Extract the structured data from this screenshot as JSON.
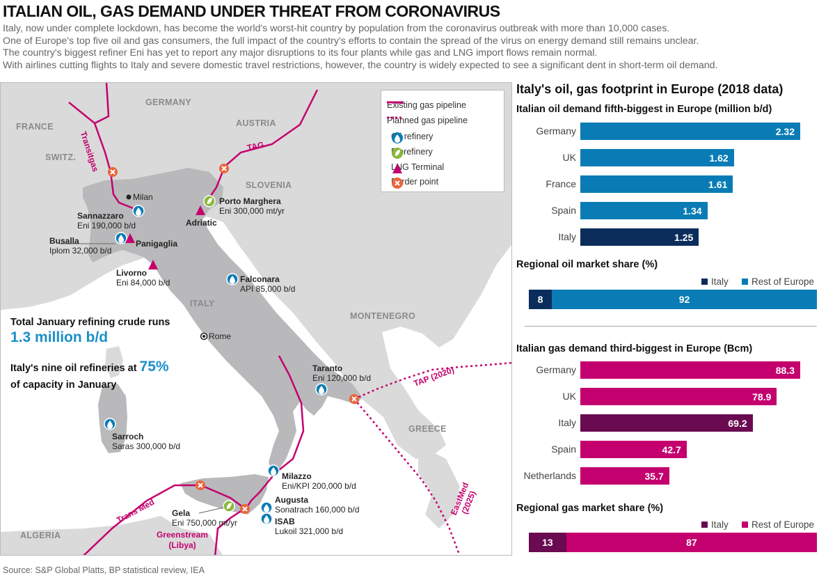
{
  "title": "ITALIAN OIL, GAS DEMAND UNDER THREAT FROM CORONAVIRUS",
  "intro": [
    "Italy, now under complete lockdown, has become the world's worst-hit country by population from the coronavirus outbreak with more than 10,000 cases.",
    "One of Europe's top five oil and gas consumers, the full impact of the country's efforts to contain the spread of the virus on energy demand still remains unclear.",
    "The country's biggest refiner Eni has yet to report any major disruptions to its four plants while gas and LNG import flows remain normal.",
    "With airlines cutting flights to Italy and severe domestic travel restrictions, however, the country is widely expected to see a significant dent in short-term oil demand."
  ],
  "source": "Source: S&P Global Platts, BP statistical review, IEA",
  "map": {
    "countries": [
      "GERMANY",
      "FRANCE",
      "AUSTRIA",
      "SWITZ.",
      "SLOVENIA",
      "ITALY",
      "MONTENEGRO",
      "GREECE",
      "ALGERIA"
    ],
    "legend": [
      "Existing gas pipeline",
      "Planned gas pipeline",
      "Oil refinery",
      "Biorefinery",
      "LNG Terminal",
      "Border point"
    ],
    "pipelines": [
      "Transitgas",
      "TAG",
      "TAP (2020)",
      "EastMed (2025)",
      "Trans Med",
      "Greenstream (Libya)"
    ],
    "cities": [
      "Milan",
      "Rome"
    ],
    "sites": [
      {
        "name": "Sannazzaro",
        "detail": "Eni 190,000 b/d"
      },
      {
        "name": "Busalla",
        "detail": "Iplom 32,000 b/d"
      },
      {
        "name": "Panigaglia",
        "detail": ""
      },
      {
        "name": "Livorno",
        "detail": "Eni 84,000 b/d"
      },
      {
        "name": "Porto Marghera",
        "detail": "Eni 300,000 mt/yr"
      },
      {
        "name": "Adriatic",
        "detail": ""
      },
      {
        "name": "Falconara",
        "detail": "API 85,000 b/d"
      },
      {
        "name": "Taranto",
        "detail": "Eni 120,000 b/d"
      },
      {
        "name": "Sarroch",
        "detail": "Saras 300,000 b/d"
      },
      {
        "name": "Milazzo",
        "detail": "Eni/KPI 200,000 b/d"
      },
      {
        "name": "Augusta",
        "detail": "Sonatrach 160,000 b/d"
      },
      {
        "name": "ISAB",
        "detail": "Lukoil 321,000 b/d"
      },
      {
        "name": "Gela",
        "detail": "Eni 750,000 mt/yr"
      }
    ],
    "stats": {
      "crude_runs_label": "Total January refining crude runs",
      "crude_runs_value": "1.3 million b/d",
      "capacity_label_a": "Italy's nine oil refineries at",
      "capacity_value": "75%",
      "capacity_label_b": "of capacity in January"
    }
  },
  "colors": {
    "oil": "#0a7cb5",
    "oil_italy": "#0b2d5b",
    "gas": "#c4006e",
    "gas_italy": "#6a0a50",
    "land": "#d8d8d8",
    "sea": "#ffffff",
    "italy": "#b9b9bb"
  },
  "chart_data": [
    {
      "type": "bar",
      "title": "Italy's oil, gas footprint in Europe (2018 data)",
      "subtitle": "Italian oil demand fifth-biggest in Europe (million b/d)",
      "categories": [
        "Germany",
        "UK",
        "France",
        "Spain",
        "Italy"
      ],
      "values": [
        2.32,
        1.62,
        1.61,
        1.34,
        1.25
      ],
      "labels": [
        "2.32",
        "1.62",
        "1.61",
        "1.34",
        "1.25"
      ],
      "highlight": "Italy",
      "xlim": [
        0,
        2.32
      ]
    },
    {
      "type": "bar",
      "title": "Regional oil market share (%)",
      "stacked": true,
      "series": [
        {
          "name": "Italy",
          "values": [
            8
          ]
        },
        {
          "name": "Rest of Europe",
          "values": [
            92
          ]
        }
      ]
    },
    {
      "type": "bar",
      "subtitle": "Italian gas demand third-biggest in Europe (Bcm)",
      "categories": [
        "Germany",
        "UK",
        "Italy",
        "Spain",
        "Netherlands"
      ],
      "values": [
        88.3,
        78.9,
        69.2,
        42.7,
        35.7
      ],
      "labels": [
        "88.3",
        "78.9",
        "69.2",
        "42.7",
        "35.7"
      ],
      "highlight": "Italy",
      "xlim": [
        0,
        88.3
      ]
    },
    {
      "type": "bar",
      "title": "Regional gas market share (%)",
      "stacked": true,
      "series": [
        {
          "name": "Italy",
          "values": [
            13
          ]
        },
        {
          "name": "Rest of Europe",
          "values": [
            87
          ]
        }
      ]
    }
  ]
}
